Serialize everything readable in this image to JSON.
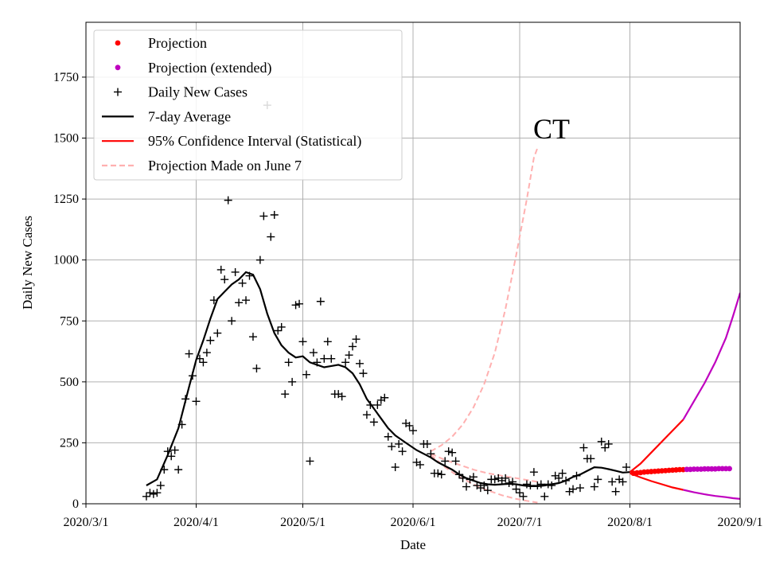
{
  "chart_data": {
    "type": "line",
    "title": "",
    "xlabel": "Date",
    "ylabel": "Daily New Cases",
    "x_start": "2020-03-01",
    "x_end": "2020-09-01",
    "xlim_days": [
      0,
      184
    ],
    "ylim": [
      0,
      1975
    ],
    "grid": true,
    "legend_position": "top-left",
    "annotation": "CT",
    "x_ticks": [
      {
        "day": 0,
        "label": "2020/3/1"
      },
      {
        "day": 31,
        "label": "2020/4/1"
      },
      {
        "day": 61,
        "label": "2020/5/1"
      },
      {
        "day": 92,
        "label": "2020/6/1"
      },
      {
        "day": 122,
        "label": "2020/7/1"
      },
      {
        "day": 153,
        "label": "2020/8/1"
      },
      {
        "day": 184,
        "label": "2020/9/1"
      }
    ],
    "y_ticks": [
      0,
      250,
      500,
      750,
      1000,
      1250,
      1500,
      1750
    ],
    "legend": [
      {
        "label": "Projection",
        "kind": "dot",
        "color": "#ff0000"
      },
      {
        "label": "Projection (extended)",
        "kind": "dot",
        "color": "#bf00bf"
      },
      {
        "label": "Daily New Cases",
        "kind": "plus",
        "color": "#000000"
      },
      {
        "label": "7-day Average",
        "kind": "line",
        "color": "#000000"
      },
      {
        "label": "95% Confidence Interval (Statistical)",
        "kind": "line",
        "color": "#ff0000"
      },
      {
        "label": "Projection Made on June 7",
        "kind": "dash",
        "color": "#ffb0b0"
      }
    ],
    "daily_new_cases": [
      [
        17,
        30
      ],
      [
        18,
        45
      ],
      [
        19,
        40
      ],
      [
        20,
        45
      ],
      [
        21,
        75
      ],
      [
        22,
        140
      ],
      [
        23,
        215
      ],
      [
        24,
        195
      ],
      [
        25,
        220
      ],
      [
        26,
        140
      ],
      [
        27,
        325
      ],
      [
        28,
        430
      ],
      [
        29,
        615
      ],
      [
        30,
        525
      ],
      [
        31,
        420
      ],
      [
        32,
        595
      ],
      [
        33,
        580
      ],
      [
        34,
        620
      ],
      [
        35,
        670
      ],
      [
        36,
        835
      ],
      [
        37,
        700
      ],
      [
        38,
        960
      ],
      [
        39,
        920
      ],
      [
        40,
        1245
      ],
      [
        41,
        750
      ],
      [
        42,
        950
      ],
      [
        43,
        825
      ],
      [
        44,
        905
      ],
      [
        45,
        835
      ],
      [
        46,
        935
      ],
      [
        47,
        685
      ],
      [
        48,
        555
      ],
      [
        49,
        1000
      ],
      [
        50,
        1180
      ],
      [
        51,
        1635
      ],
      [
        52,
        1095
      ],
      [
        53,
        1185
      ],
      [
        54,
        710
      ],
      [
        55,
        725
      ],
      [
        56,
        450
      ],
      [
        57,
        580
      ],
      [
        58,
        500
      ],
      [
        59,
        815
      ],
      [
        60,
        820
      ],
      [
        61,
        665
      ],
      [
        62,
        530
      ],
      [
        63,
        175
      ],
      [
        64,
        620
      ],
      [
        65,
        580
      ],
      [
        66,
        830
      ],
      [
        67,
        595
      ],
      [
        68,
        665
      ],
      [
        69,
        595
      ],
      [
        70,
        450
      ],
      [
        71,
        450
      ],
      [
        72,
        440
      ],
      [
        73,
        580
      ],
      [
        74,
        610
      ],
      [
        75,
        645
      ],
      [
        76,
        675
      ],
      [
        77,
        575
      ],
      [
        78,
        535
      ],
      [
        79,
        365
      ],
      [
        80,
        405
      ],
      [
        81,
        335
      ],
      [
        82,
        405
      ],
      [
        83,
        425
      ],
      [
        84,
        435
      ],
      [
        85,
        275
      ],
      [
        86,
        235
      ],
      [
        87,
        150
      ],
      [
        88,
        245
      ],
      [
        89,
        215
      ],
      [
        90,
        330
      ],
      [
        91,
        320
      ],
      [
        92,
        300
      ],
      [
        93,
        170
      ],
      [
        94,
        160
      ],
      [
        95,
        245
      ],
      [
        96,
        245
      ],
      [
        97,
        205
      ],
      [
        98,
        125
      ],
      [
        99,
        125
      ],
      [
        100,
        120
      ],
      [
        101,
        175
      ],
      [
        102,
        215
      ],
      [
        103,
        210
      ],
      [
        104,
        175
      ],
      [
        105,
        120
      ],
      [
        106,
        105
      ],
      [
        107,
        70
      ],
      [
        108,
        100
      ],
      [
        109,
        110
      ],
      [
        110,
        75
      ],
      [
        111,
        65
      ],
      [
        112,
        75
      ],
      [
        113,
        55
      ],
      [
        114,
        100
      ],
      [
        115,
        100
      ],
      [
        116,
        105
      ],
      [
        117,
        95
      ],
      [
        118,
        105
      ],
      [
        119,
        85
      ],
      [
        120,
        90
      ],
      [
        121,
        60
      ],
      [
        122,
        45
      ],
      [
        123,
        30
      ],
      [
        124,
        80
      ],
      [
        125,
        75
      ],
      [
        126,
        130
      ],
      [
        127,
        75
      ],
      [
        128,
        80
      ],
      [
        129,
        30
      ],
      [
        130,
        80
      ],
      [
        131,
        75
      ],
      [
        132,
        115
      ],
      [
        133,
        105
      ],
      [
        134,
        125
      ],
      [
        135,
        95
      ],
      [
        136,
        50
      ],
      [
        137,
        60
      ],
      [
        138,
        115
      ],
      [
        139,
        65
      ],
      [
        140,
        230
      ],
      [
        141,
        185
      ],
      [
        142,
        185
      ],
      [
        143,
        70
      ],
      [
        144,
        100
      ],
      [
        145,
        255
      ],
      [
        146,
        230
      ],
      [
        147,
        245
      ],
      [
        148,
        90
      ],
      [
        149,
        50
      ],
      [
        150,
        100
      ],
      [
        151,
        90
      ],
      [
        152,
        150
      ]
    ],
    "avg_7day": [
      [
        17,
        75
      ],
      [
        20,
        100
      ],
      [
        23,
        200
      ],
      [
        26,
        310
      ],
      [
        29,
        480
      ],
      [
        31,
        590
      ],
      [
        33,
        670
      ],
      [
        35,
        760
      ],
      [
        37,
        840
      ],
      [
        39,
        870
      ],
      [
        41,
        900
      ],
      [
        43,
        920
      ],
      [
        45,
        950
      ],
      [
        47,
        940
      ],
      [
        49,
        880
      ],
      [
        51,
        780
      ],
      [
        53,
        700
      ],
      [
        55,
        650
      ],
      [
        57,
        620
      ],
      [
        59,
        600
      ],
      [
        61,
        605
      ],
      [
        63,
        580
      ],
      [
        65,
        570
      ],
      [
        67,
        560
      ],
      [
        69,
        565
      ],
      [
        71,
        570
      ],
      [
        73,
        560
      ],
      [
        75,
        535
      ],
      [
        77,
        490
      ],
      [
        79,
        430
      ],
      [
        81,
        390
      ],
      [
        83,
        350
      ],
      [
        85,
        310
      ],
      [
        87,
        280
      ],
      [
        89,
        260
      ],
      [
        91,
        240
      ],
      [
        93,
        220
      ],
      [
        95,
        205
      ],
      [
        97,
        190
      ],
      [
        99,
        170
      ],
      [
        101,
        155
      ],
      [
        103,
        140
      ],
      [
        105,
        120
      ],
      [
        107,
        105
      ],
      [
        109,
        95
      ],
      [
        111,
        85
      ],
      [
        113,
        80
      ],
      [
        115,
        78
      ],
      [
        117,
        80
      ],
      [
        119,
        82
      ],
      [
        121,
        80
      ],
      [
        123,
        75
      ],
      [
        125,
        72
      ],
      [
        127,
        72
      ],
      [
        129,
        75
      ],
      [
        131,
        80
      ],
      [
        133,
        85
      ],
      [
        135,
        95
      ],
      [
        137,
        110
      ],
      [
        139,
        120
      ],
      [
        141,
        135
      ],
      [
        143,
        150
      ],
      [
        145,
        148
      ],
      [
        147,
        142
      ],
      [
        149,
        135
      ],
      [
        151,
        128
      ],
      [
        153,
        130
      ]
    ],
    "projection": {
      "color": "#ff0000",
      "points": [
        [
          154,
          125
        ],
        [
          155,
          127
        ],
        [
          156,
          128
        ],
        [
          157,
          130
        ],
        [
          158,
          131
        ],
        [
          159,
          132
        ],
        [
          160,
          133
        ],
        [
          161,
          134
        ],
        [
          162,
          135
        ],
        [
          163,
          136
        ],
        [
          164,
          137
        ],
        [
          165,
          138
        ],
        [
          166,
          139
        ],
        [
          167,
          140
        ],
        [
          168,
          140
        ]
      ]
    },
    "projection_extended": {
      "color": "#bf00bf",
      "points": [
        [
          169,
          141
        ],
        [
          170,
          141
        ],
        [
          171,
          142
        ],
        [
          172,
          142
        ],
        [
          173,
          142
        ],
        [
          174,
          143
        ],
        [
          175,
          143
        ],
        [
          176,
          143
        ],
        [
          177,
          143
        ],
        [
          178,
          144
        ],
        [
          179,
          144
        ],
        [
          180,
          144
        ],
        [
          181,
          144
        ]
      ]
    },
    "confidence_interval": {
      "color": "#ff0000",
      "extended_color": "#bf00bf",
      "split_day": 168,
      "upper": [
        [
          153,
          130
        ],
        [
          156,
          165
        ],
        [
          159,
          210
        ],
        [
          162,
          255
        ],
        [
          165,
          300
        ],
        [
          168,
          345
        ],
        [
          171,
          420
        ],
        [
          174,
          495
        ],
        [
          177,
          580
        ],
        [
          180,
          680
        ],
        [
          182,
          770
        ],
        [
          184,
          865
        ]
      ],
      "lower": [
        [
          153,
          125
        ],
        [
          156,
          108
        ],
        [
          159,
          93
        ],
        [
          162,
          80
        ],
        [
          165,
          67
        ],
        [
          168,
          57
        ],
        [
          171,
          47
        ],
        [
          174,
          39
        ],
        [
          177,
          32
        ],
        [
          180,
          27
        ],
        [
          182,
          23
        ],
        [
          184,
          20
        ]
      ]
    },
    "projection_june7": {
      "color": "#ffb0b0",
      "upper": [
        [
          97,
          215
        ],
        [
          100,
          240
        ],
        [
          103,
          275
        ],
        [
          106,
          325
        ],
        [
          109,
          395
        ],
        [
          112,
          490
        ],
        [
          115,
          620
        ],
        [
          118,
          800
        ],
        [
          121,
          1020
        ],
        [
          124,
          1250
        ],
        [
          126,
          1420
        ],
        [
          127,
          1460
        ]
      ],
      "mid": [
        [
          97,
          205
        ],
        [
          101,
          180
        ],
        [
          105,
          160
        ],
        [
          109,
          140
        ],
        [
          113,
          125
        ],
        [
          117,
          115
        ],
        [
          121,
          105
        ],
        [
          125,
          95
        ],
        [
          127,
          90
        ]
      ],
      "lower": [
        [
          97,
          200
        ],
        [
          101,
          150
        ],
        [
          105,
          110
        ],
        [
          109,
          80
        ],
        [
          113,
          55
        ],
        [
          117,
          35
        ],
        [
          121,
          20
        ],
        [
          124,
          12
        ],
        [
          127,
          5
        ]
      ]
    }
  }
}
